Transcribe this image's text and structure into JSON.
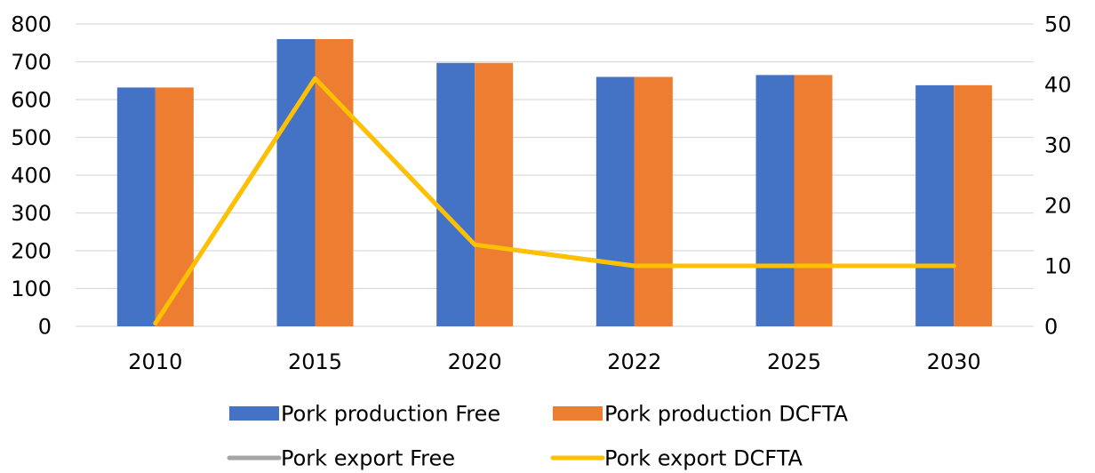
{
  "chart_data": {
    "type": "bar",
    "categories": [
      "2010",
      "2015",
      "2020",
      "2022",
      "2025",
      "2030"
    ],
    "series": [
      {
        "name": "Pork production Free",
        "kind": "bar",
        "axis": "left",
        "color": "#4472c4",
        "values": [
          632,
          760,
          697,
          660,
          665,
          638
        ]
      },
      {
        "name": "Pork production DCFTA",
        "kind": "bar",
        "axis": "left",
        "color": "#ed7d31",
        "values": [
          632,
          760,
          697,
          660,
          665,
          638
        ]
      },
      {
        "name": "Pork export Free",
        "kind": "line",
        "axis": "right",
        "color": "#a5a5a5",
        "values": [
          0.5,
          41,
          13.5,
          10,
          10,
          10
        ]
      },
      {
        "name": "Pork export DCFTA",
        "kind": "line",
        "axis": "right",
        "color": "#ffc000",
        "values": [
          0.5,
          41,
          13.5,
          10,
          10,
          10
        ]
      }
    ],
    "y_left": {
      "ylim": [
        0,
        800
      ],
      "ticks": [
        "0",
        "100",
        "200",
        "300",
        "400",
        "500",
        "600",
        "700",
        "800"
      ]
    },
    "y_right": {
      "ylim": [
        0,
        50
      ],
      "ticks": [
        "0",
        "10",
        "20",
        "30",
        "40",
        "50"
      ]
    },
    "grid": true,
    "legend_position": "bottom",
    "title": "",
    "xlabel": "",
    "ylabel": ""
  }
}
